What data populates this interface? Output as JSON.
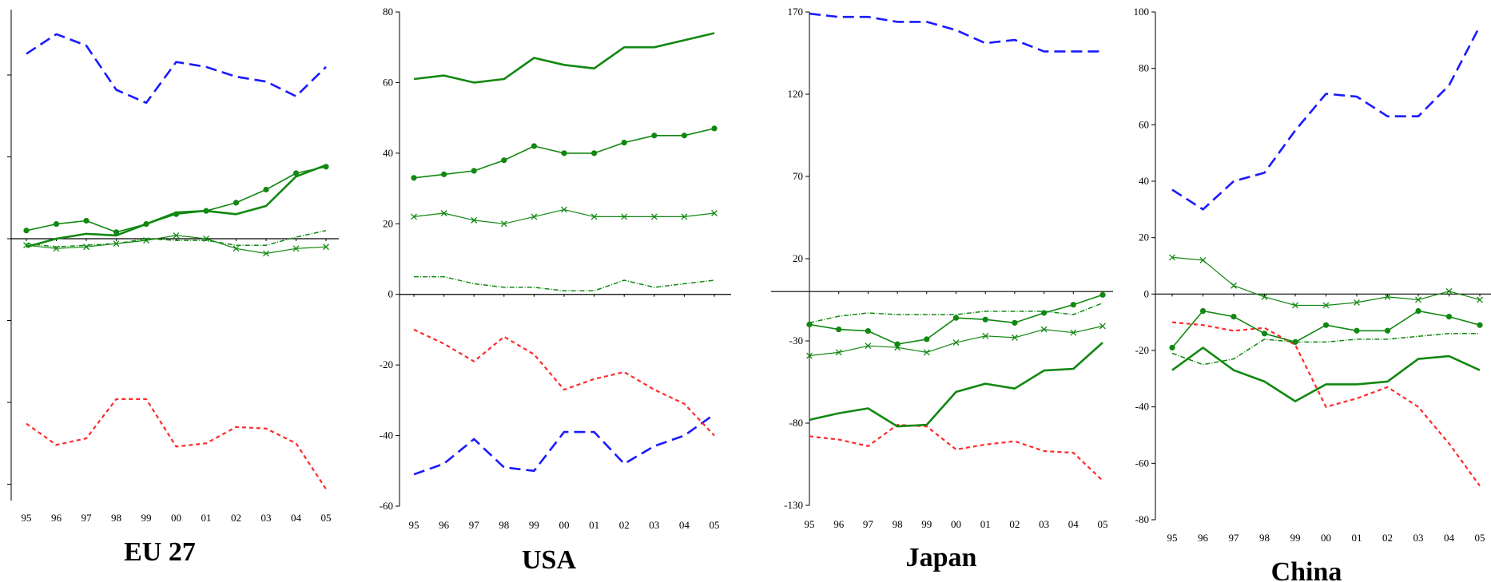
{
  "chart_data": [
    {
      "type": "line",
      "title": "EU 27",
      "categories": [
        "95",
        "96",
        "97",
        "98",
        "99",
        "00",
        "01",
        "02",
        "03",
        "04",
        "05"
      ],
      "yticks": [],
      "ylim": [
        -160,
        140
      ],
      "colors": {
        "blue": "#1a1aff",
        "red": "#ff2a2a",
        "green": "#118811"
      },
      "series": [
        {
          "style": "blue-dash",
          "values": [
            113,
            125,
            118,
            91,
            83,
            108,
            105,
            99,
            96,
            87,
            105
          ]
        },
        {
          "style": "red-dot",
          "values": [
            -113,
            -126,
            -122,
            -98,
            -98,
            -127,
            -125,
            -115,
            -116,
            -125,
            -153
          ]
        },
        {
          "style": "green-solid",
          "values": [
            -5,
            0,
            3,
            2,
            9,
            16,
            17,
            15,
            20,
            38,
            45
          ]
        },
        {
          "style": "green-dot-marker",
          "values": [
            5,
            9,
            11,
            4,
            9,
            15,
            17,
            22,
            30,
            40,
            44
          ]
        },
        {
          "style": "green-x",
          "values": [
            -4,
            -6,
            -5,
            -3,
            -1,
            2,
            0,
            -6,
            -9,
            -6,
            -5
          ]
        },
        {
          "style": "green-dashdot",
          "values": [
            -3,
            -5,
            -4,
            -3,
            0,
            -1,
            -1,
            -4,
            -4,
            1,
            5
          ]
        }
      ]
    },
    {
      "type": "line",
      "title": "USA",
      "categories": [
        "95",
        "96",
        "97",
        "98",
        "99",
        "00",
        "01",
        "02",
        "03",
        "04",
        "05"
      ],
      "yticks": [
        -60,
        -40,
        -20,
        0,
        20,
        40,
        60,
        80
      ],
      "ylim": [
        -60,
        80
      ],
      "colors": {
        "blue": "#1a1aff",
        "red": "#ff2a2a",
        "green": "#118811"
      },
      "series": [
        {
          "style": "blue-dash",
          "values": [
            -51,
            -48,
            -41,
            -49,
            -50,
            -39,
            -39,
            -48,
            -43,
            -40,
            -34
          ]
        },
        {
          "style": "red-dot",
          "values": [
            -10,
            -14,
            -19,
            -12,
            -17,
            -27,
            -24,
            -22,
            -27,
            -31,
            -40
          ]
        },
        {
          "style": "green-solid",
          "values": [
            61,
            62,
            60,
            61,
            67,
            65,
            64,
            70,
            70,
            72,
            74
          ]
        },
        {
          "style": "green-dot-marker",
          "values": [
            33,
            34,
            35,
            38,
            42,
            40,
            40,
            43,
            45,
            45,
            47
          ]
        },
        {
          "style": "green-x",
          "values": [
            22,
            23,
            21,
            20,
            22,
            24,
            22,
            22,
            22,
            22,
            23
          ]
        },
        {
          "style": "green-dashdot",
          "values": [
            5,
            5,
            3,
            2,
            2,
            1,
            1,
            4,
            2,
            3,
            4
          ]
        }
      ]
    },
    {
      "type": "line",
      "title": "Japan",
      "categories": [
        "95",
        "96",
        "97",
        "98",
        "99",
        "00",
        "01",
        "02",
        "03",
        "04",
        "05"
      ],
      "yticks": [
        -130,
        -80,
        -30,
        20,
        70,
        120,
        170
      ],
      "ylim": [
        -130,
        170
      ],
      "colors": {
        "blue": "#1a1aff",
        "red": "#ff2a2a",
        "green": "#118811"
      },
      "series": [
        {
          "style": "blue-dash",
          "values": [
            169,
            167,
            167,
            164,
            164,
            159,
            151,
            153,
            146,
            146,
            146
          ]
        },
        {
          "style": "red-dot",
          "values": [
            -88,
            -90,
            -94,
            -81,
            -82,
            -96,
            -93,
            -91,
            -97,
            -98,
            -115
          ]
        },
        {
          "style": "green-solid",
          "values": [
            -78,
            -74,
            -71,
            -82,
            -81,
            -61,
            -56,
            -59,
            -48,
            -47,
            -31
          ]
        },
        {
          "style": "green-dot-marker",
          "values": [
            -20,
            -23,
            -24,
            -32,
            -29,
            -16,
            -17,
            -19,
            -13,
            -8,
            -2
          ]
        },
        {
          "style": "green-x",
          "values": [
            -39,
            -37,
            -33,
            -34,
            -37,
            -31,
            -27,
            -28,
            -23,
            -25,
            -21
          ]
        },
        {
          "style": "green-dashdot",
          "values": [
            -19,
            -15,
            -13,
            -14,
            -14,
            -14,
            -12,
            -12,
            -12,
            -14,
            -7
          ]
        }
      ]
    },
    {
      "type": "line",
      "title": "China",
      "categories": [
        "95",
        "96",
        "97",
        "98",
        "99",
        "00",
        "01",
        "02",
        "03",
        "04",
        "05"
      ],
      "yticks": [
        -80,
        -60,
        -40,
        -20,
        0,
        20,
        40,
        60,
        80,
        100
      ],
      "ylim": [
        -80,
        100
      ],
      "colors": {
        "blue": "#1a1aff",
        "red": "#ff2a2a",
        "green": "#118811"
      },
      "series": [
        {
          "style": "blue-dash",
          "values": [
            37,
            30,
            40,
            43,
            58,
            71,
            70,
            63,
            63,
            74,
            95
          ]
        },
        {
          "style": "red-dot",
          "values": [
            -10,
            -11,
            -13,
            -12,
            -18,
            -40,
            -37,
            -33,
            -40,
            -53,
            -68
          ]
        },
        {
          "style": "green-solid",
          "values": [
            -27,
            -19,
            -27,
            -31,
            -38,
            -32,
            -32,
            -31,
            -23,
            -22,
            -27
          ]
        },
        {
          "style": "green-dot-marker",
          "values": [
            -19,
            -6,
            -8,
            -14,
            -17,
            -11,
            -13,
            -13,
            -6,
            -8,
            -11
          ]
        },
        {
          "style": "green-x",
          "values": [
            13,
            12,
            3,
            -1,
            -4,
            -4,
            -3,
            -1,
            -2,
            1,
            -2
          ]
        },
        {
          "style": "green-dashdot",
          "values": [
            -21,
            -25,
            -23,
            -16,
            -17,
            -17,
            -16,
            -16,
            -15,
            -14,
            -14
          ]
        }
      ]
    }
  ]
}
